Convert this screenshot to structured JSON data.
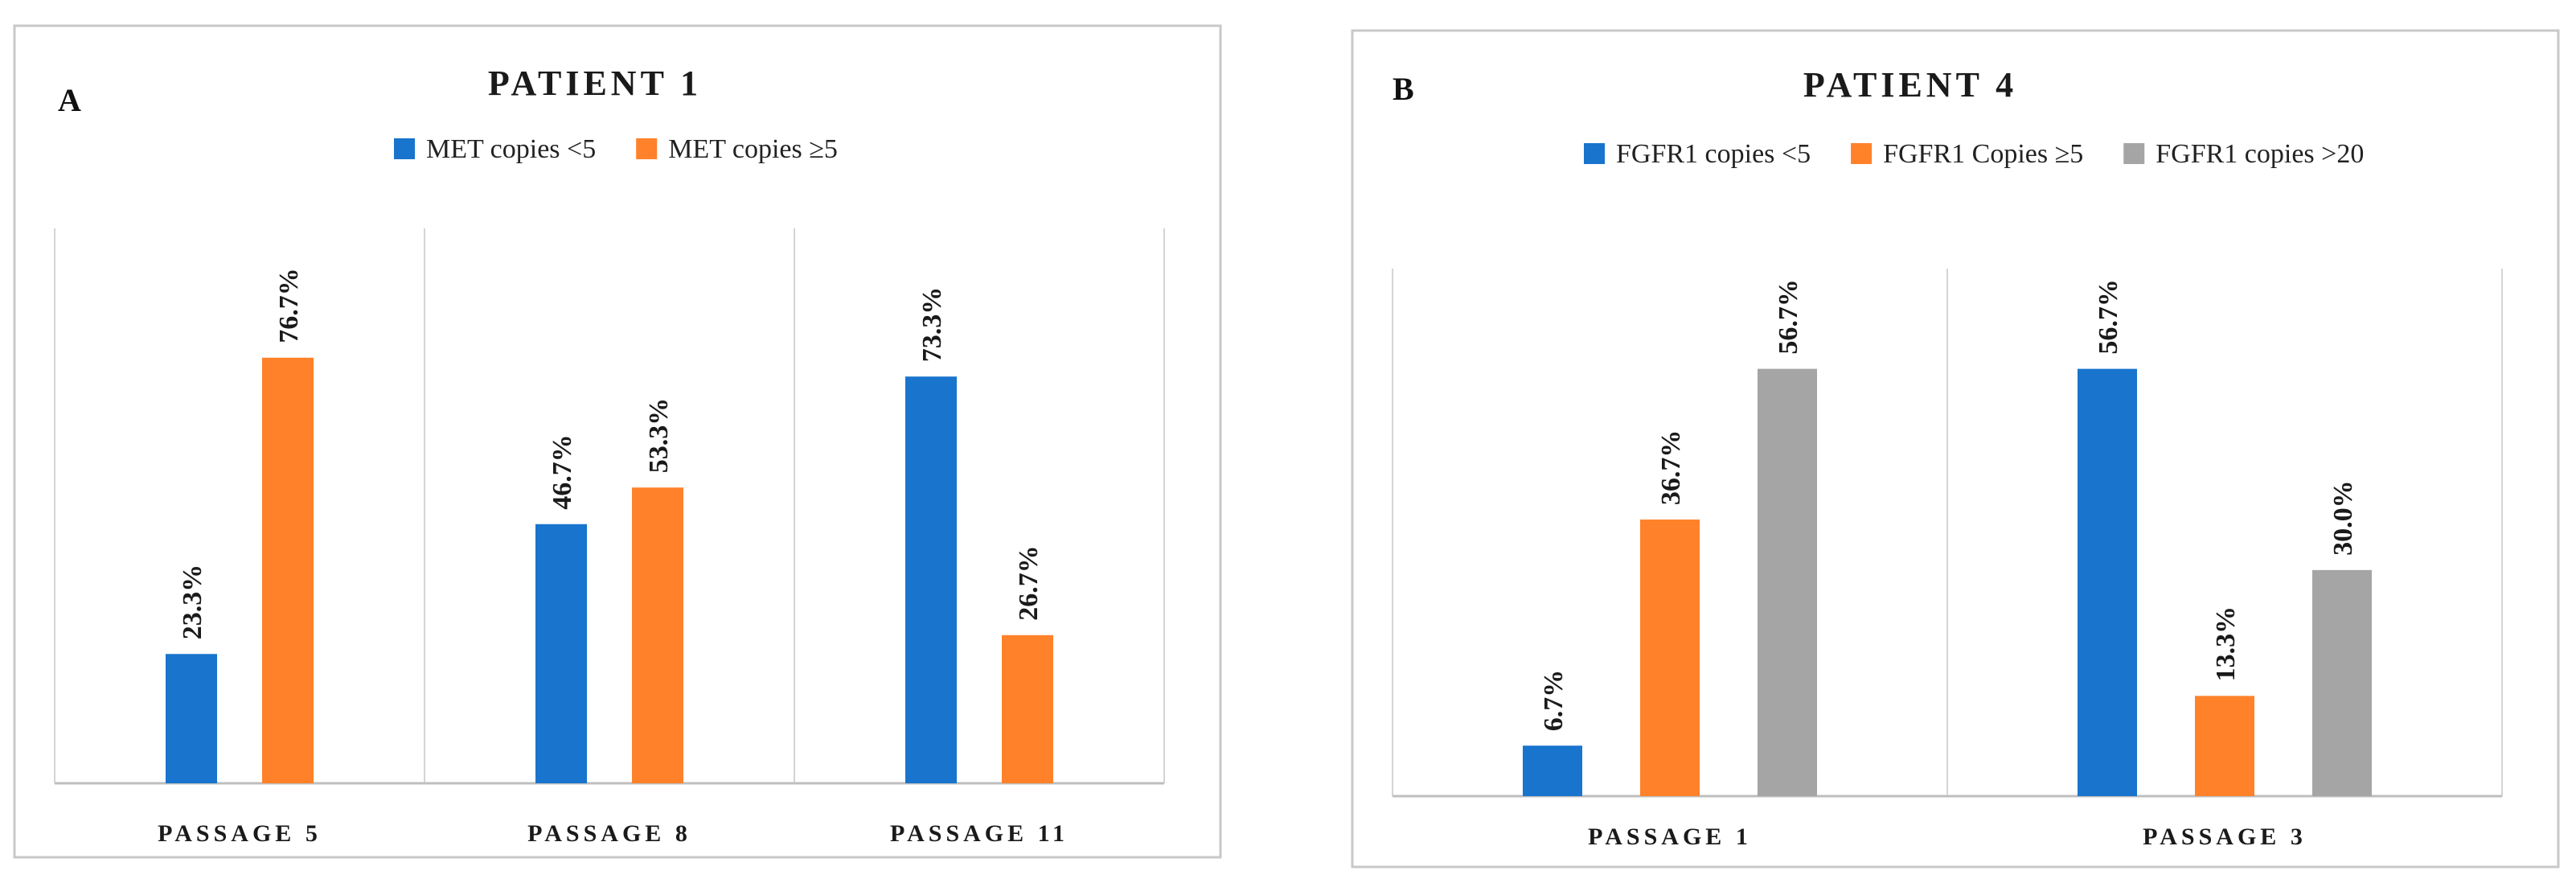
{
  "chart_data": [
    {
      "type": "bar",
      "panel_letter": "A",
      "title": "PATIENT 1",
      "categories": [
        "PASSAGE 5",
        "PASSAGE 8",
        "PASSAGE 11"
      ],
      "series": [
        {
          "name": "MET copies <5",
          "color": "#1874cd",
          "values": [
            23.3,
            46.7,
            73.3
          ]
        },
        {
          "name": "MET copies ≥5",
          "color": "#ff8129",
          "values": [
            76.7,
            53.3,
            26.7
          ]
        }
      ],
      "value_suffix": "%",
      "ylim": [
        0,
        100
      ],
      "legend_position": "top",
      "grid": false
    },
    {
      "type": "bar",
      "panel_letter": "B",
      "title": "PATIENT 4",
      "categories": [
        "PASSAGE 1",
        "PASSAGE 3"
      ],
      "series": [
        {
          "name": "FGFR1 copies <5",
          "color": "#1874cd",
          "values": [
            6.7,
            56.7
          ]
        },
        {
          "name": "FGFR1 Copies ≥5",
          "color": "#ff8129",
          "values": [
            36.7,
            13.3
          ]
        },
        {
          "name": "FGFR1 copies >20",
          "color": "#a5a5a5",
          "values": [
            56.7,
            30.0
          ]
        }
      ],
      "value_suffix": "%",
      "ylim": [
        0,
        70
      ],
      "legend_position": "top",
      "grid": false
    }
  ]
}
